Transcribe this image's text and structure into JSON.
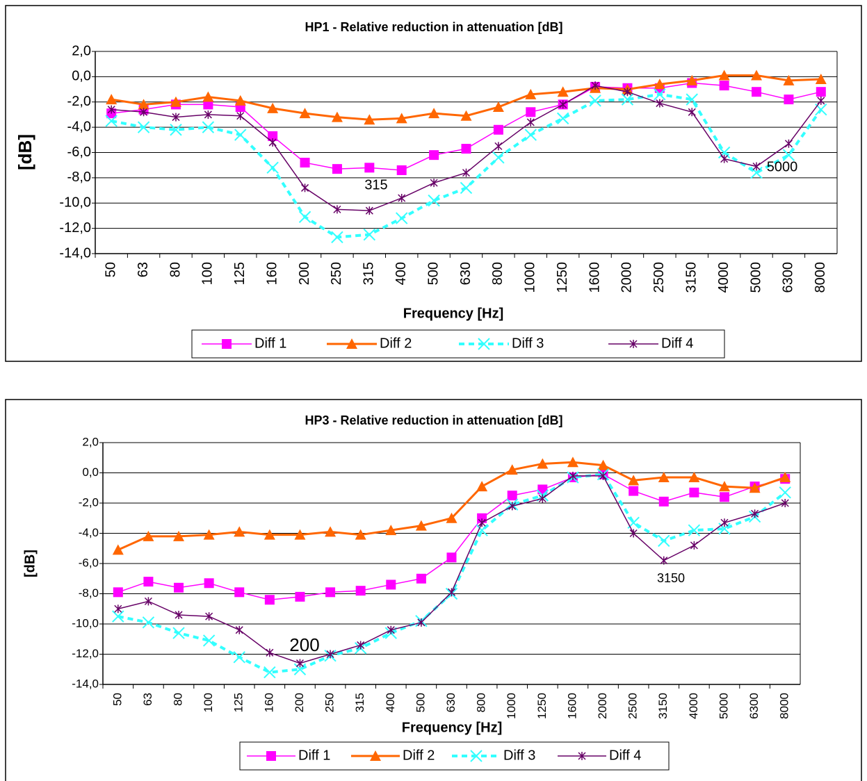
{
  "chart_data": [
    {
      "type": "line",
      "title": "HP1 - Relative reduction in attenuation [dB]",
      "x_label": "Frequency [Hz]",
      "y_label": "[dB]",
      "categories": [
        "50",
        "63",
        "80",
        "100",
        "125",
        "160",
        "200",
        "250",
        "315",
        "400",
        "500",
        "630",
        "800",
        "1000",
        "1250",
        "1600",
        "2000",
        "2500",
        "3150",
        "4000",
        "5000",
        "6300",
        "8000"
      ],
      "ylim": [
        -14,
        2
      ],
      "yticks": [
        {
          "value": -14,
          "label": "-14,0"
        },
        {
          "value": -12,
          "label": "-12,0"
        },
        {
          "value": -10,
          "label": "-10,0"
        },
        {
          "value": -8,
          "label": "-8,0"
        },
        {
          "value": -6,
          "label": "-6,0"
        },
        {
          "value": -4,
          "label": "-4,0"
        },
        {
          "value": -2,
          "label": "-2,0"
        },
        {
          "value": 0,
          "label": "0,0"
        },
        {
          "value": 2,
          "label": "2,0"
        }
      ],
      "grid": true,
      "legend": "bottom",
      "annotations": [
        "315",
        "5000"
      ],
      "series": [
        {
          "name": "Diff 1",
          "color": "#ff00ff",
          "marker": "square",
          "values": [
            -2.9,
            -2.6,
            -2.2,
            -2.2,
            -2.4,
            -4.7,
            -6.8,
            -7.3,
            -7.2,
            -7.4,
            -6.2,
            -5.7,
            -4.2,
            -2.8,
            -2.2,
            -0.8,
            -0.9,
            -0.9,
            -0.5,
            -0.7,
            -1.2,
            -1.8,
            -1.2
          ]
        },
        {
          "name": "Diff 2",
          "color": "#ff6600",
          "marker": "triangle",
          "values": [
            -1.8,
            -2.2,
            -2.0,
            -1.6,
            -1.9,
            -2.5,
            -2.9,
            -3.2,
            -3.4,
            -3.3,
            -2.9,
            -3.1,
            -2.4,
            -1.4,
            -1.2,
            -0.9,
            -1.0,
            -0.6,
            -0.3,
            0.1,
            0.1,
            -0.3,
            -0.2
          ]
        },
        {
          "name": "Diff 3",
          "color": "#33ffff",
          "marker": "x",
          "dashed": true,
          "values": [
            -3.5,
            -4.0,
            -4.2,
            -4.0,
            -4.6,
            -7.2,
            -11.1,
            -12.7,
            -12.5,
            -11.2,
            -9.8,
            -8.8,
            -6.4,
            -4.6,
            -3.3,
            -1.9,
            -1.8,
            -1.4,
            -1.8,
            -6.0,
            -7.6,
            -6.2,
            -2.6
          ]
        },
        {
          "name": "Diff 4",
          "color": "#660066",
          "marker": "star",
          "values": [
            -2.6,
            -2.8,
            -3.2,
            -3.0,
            -3.1,
            -5.2,
            -8.8,
            -10.5,
            -10.6,
            -9.6,
            -8.4,
            -7.6,
            -5.5,
            -3.6,
            -2.2,
            -0.7,
            -1.2,
            -2.1,
            -2.8,
            -6.5,
            -7.1,
            -5.3,
            -1.9
          ]
        }
      ]
    },
    {
      "type": "line",
      "title": "HP3 - Relative reduction in attenuation [dB]",
      "x_label": "Frequency [Hz]",
      "y_label": "[dB]",
      "categories": [
        "50",
        "63",
        "80",
        "100",
        "125",
        "160",
        "200",
        "250",
        "315",
        "400",
        "500",
        "630",
        "800",
        "1000",
        "1250",
        "1600",
        "2000",
        "2500",
        "3150",
        "4000",
        "5000",
        "6300",
        "8000"
      ],
      "ylim": [
        -14,
        2
      ],
      "yticks": [
        {
          "value": -14,
          "label": "-14,0"
        },
        {
          "value": -12,
          "label": "-12,0"
        },
        {
          "value": -10,
          "label": "-10,0"
        },
        {
          "value": -8,
          "label": "-8,0"
        },
        {
          "value": -6,
          "label": "-6,0"
        },
        {
          "value": -4,
          "label": "-4,0"
        },
        {
          "value": -2,
          "label": "-2,0"
        },
        {
          "value": 0,
          "label": "0,0"
        },
        {
          "value": 2,
          "label": "2,0"
        }
      ],
      "grid": true,
      "legend": "bottom",
      "annotations": [
        "200",
        "3150"
      ],
      "series": [
        {
          "name": "Diff 1",
          "color": "#ff00ff",
          "marker": "square",
          "values": [
            -7.9,
            -7.2,
            -7.6,
            -7.3,
            -7.9,
            -8.4,
            -8.2,
            -7.9,
            -7.8,
            -7.4,
            -7.0,
            -5.6,
            -3.0,
            -1.5,
            -1.1,
            -0.3,
            -0.1,
            -1.2,
            -1.9,
            -1.3,
            -1.6,
            -0.9,
            -0.4
          ]
        },
        {
          "name": "Diff 2",
          "color": "#ff6600",
          "marker": "triangle",
          "values": [
            -5.1,
            -4.2,
            -4.2,
            -4.1,
            -3.9,
            -4.1,
            -4.1,
            -3.9,
            -4.1,
            -3.8,
            -3.5,
            -3.0,
            -0.9,
            0.2,
            0.6,
            0.7,
            0.5,
            -0.5,
            -0.3,
            -0.3,
            -0.9,
            -1.0,
            -0.3
          ]
        },
        {
          "name": "Diff 3",
          "color": "#33ffff",
          "marker": "x",
          "dashed": true,
          "values": [
            -9.5,
            -9.9,
            -10.6,
            -11.1,
            -12.2,
            -13.2,
            -13.0,
            -12.1,
            -11.6,
            -10.6,
            -9.8,
            -8.0,
            -3.8,
            -2.1,
            -1.5,
            -0.3,
            -0.1,
            -3.3,
            -4.5,
            -3.8,
            -3.7,
            -2.9,
            -1.3
          ]
        },
        {
          "name": "Diff 4",
          "color": "#660066",
          "marker": "star",
          "values": [
            -9.0,
            -8.5,
            -9.4,
            -9.5,
            -10.4,
            -11.9,
            -12.6,
            -12.0,
            -11.4,
            -10.4,
            -9.9,
            -7.9,
            -3.3,
            -2.2,
            -1.7,
            -0.2,
            -0.2,
            -4.0,
            -5.8,
            -4.8,
            -3.3,
            -2.7,
            -2.0
          ]
        }
      ]
    }
  ]
}
